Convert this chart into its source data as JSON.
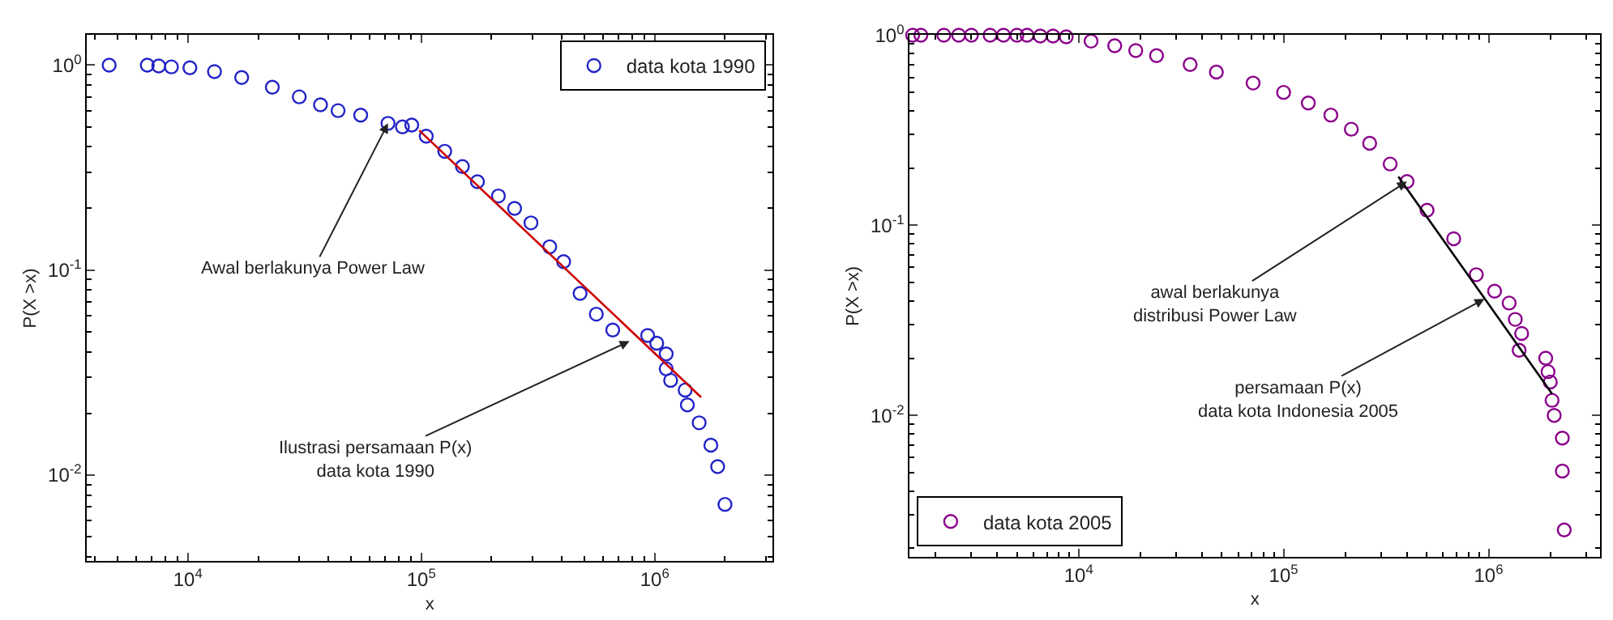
{
  "chart_data": [
    {
      "type": "scatter",
      "xlabel": "x",
      "ylabel": "P(X >x)",
      "log": "xy",
      "legend": "top right",
      "xlim": [
        3700,
        3200000
      ],
      "ylim": [
        0.0038,
        1.4
      ],
      "xticks": [
        {
          "value": 10000,
          "label": "10$^{4}$"
        },
        {
          "value": 100000,
          "label": "10$^{5}$"
        },
        {
          "value": 1000000,
          "label": "10$^{6}$"
        }
      ],
      "yticks": [
        {
          "value": 0.01,
          "label": "10$^{-2}$"
        },
        {
          "value": 0.1,
          "label": "10$^{-1}$"
        },
        {
          "value": 1,
          "label": "10$^{0}$"
        }
      ],
      "series": [
        {
          "name": "data kota 1990",
          "color": "#2323c8",
          "marker": "circle",
          "x": [
            4600,
            6700,
            7500,
            8500,
            10200,
            13000,
            17000,
            23000,
            30000,
            37000,
            44000,
            55000,
            72000,
            83000,
            91000,
            105000,
            126000,
            150000,
            174000,
            214000,
            251000,
            295000,
            355000,
            407000,
            479000,
            562000,
            661000,
            933000,
            1020000,
            1120000,
            1120000,
            1170000,
            1350000,
            1380000,
            1550000,
            1740000,
            1860000,
            2000000
          ],
          "values": [
            1.0,
            1.0,
            0.99,
            0.98,
            0.97,
            0.93,
            0.87,
            0.78,
            0.7,
            0.64,
            0.6,
            0.57,
            0.52,
            0.5,
            0.51,
            0.45,
            0.38,
            0.32,
            0.27,
            0.23,
            0.2,
            0.17,
            0.13,
            0.11,
            0.077,
            0.061,
            0.051,
            0.048,
            0.044,
            0.039,
            0.033,
            0.029,
            0.026,
            0.022,
            0.018,
            0.014,
            0.011,
            0.0072
          ]
        },
        {
          "type": "line",
          "color": "#cc0000",
          "marker": "none",
          "x": [
            98000,
            1580000
          ],
          "values": [
            0.48,
            0.024
          ]
        }
      ],
      "annotations": [
        {
          "text": "Awal berlakunya Power Law",
          "x": 72000,
          "y": 0.52
        },
        {
          "text": "Ilustrasi persamaan P(x)\ndata kota 1990",
          "x": 780000,
          "y": 0.045
        }
      ]
    },
    {
      "type": "scatter",
      "xlabel": "x",
      "ylabel": "P(X >x)",
      "log": "xy",
      "legend": "bottom left",
      "xlim": [
        1500,
        3500000
      ],
      "ylim": [
        0.0018,
        1
      ],
      "xticks": [
        {
          "value": 10000,
          "label": "10$^{4}$"
        },
        {
          "value": 100000,
          "label": "10$^{5}$"
        },
        {
          "value": 1000000,
          "label": "10$^{6}$"
        }
      ],
      "yticks": [
        {
          "value": 0.01,
          "label": "10$^{-2}$"
        },
        {
          "value": 0.1,
          "label": "10$^{-1}$"
        },
        {
          "value": 1,
          "label": "10$^{0}$"
        }
      ],
      "series": [
        {
          "name": "data kota 2005",
          "color": "#8b008b",
          "marker": "circle",
          "x": [
            1550,
            1700,
            2200,
            2600,
            3000,
            3700,
            4300,
            5000,
            5600,
            6500,
            7500,
            8700,
            11500,
            15000,
            19000,
            24000,
            35000,
            47000,
            71000,
            100000,
            132000,
            170000,
            214000,
            263000,
            331000,
            400000,
            501000,
            676000,
            871000,
            1070000,
            1260000,
            1350000,
            1450000,
            1410000,
            1900000,
            1950000,
            2000000,
            2040000,
            2090000,
            2290000,
            2290000,
            2340000
          ],
          "values": [
            1.0,
            1.0,
            1.0,
            1.0,
            1.0,
            1.0,
            1.0,
            1.0,
            1.0,
            0.99,
            0.99,
            0.98,
            0.93,
            0.88,
            0.83,
            0.78,
            0.7,
            0.64,
            0.56,
            0.5,
            0.44,
            0.38,
            0.32,
            0.27,
            0.21,
            0.17,
            0.12,
            0.085,
            0.055,
            0.045,
            0.039,
            0.032,
            0.027,
            0.022,
            0.02,
            0.017,
            0.015,
            0.012,
            0.01,
            0.0076,
            0.0051,
            0.0025
          ]
        },
        {
          "type": "line",
          "color": "#000000",
          "marker": "none",
          "x": [
            363000,
            2040000
          ],
          "values": [
            0.18,
            0.013
          ]
        }
      ],
      "annotations": [
        {
          "text": "awal berlakunya\ndistribusi Power Law",
          "x": 400000,
          "y": 0.17
        },
        {
          "text": "persamaan P(x)\ndata kota Indonesia 2005",
          "x": 955000,
          "y": 0.041
        }
      ]
    }
  ]
}
